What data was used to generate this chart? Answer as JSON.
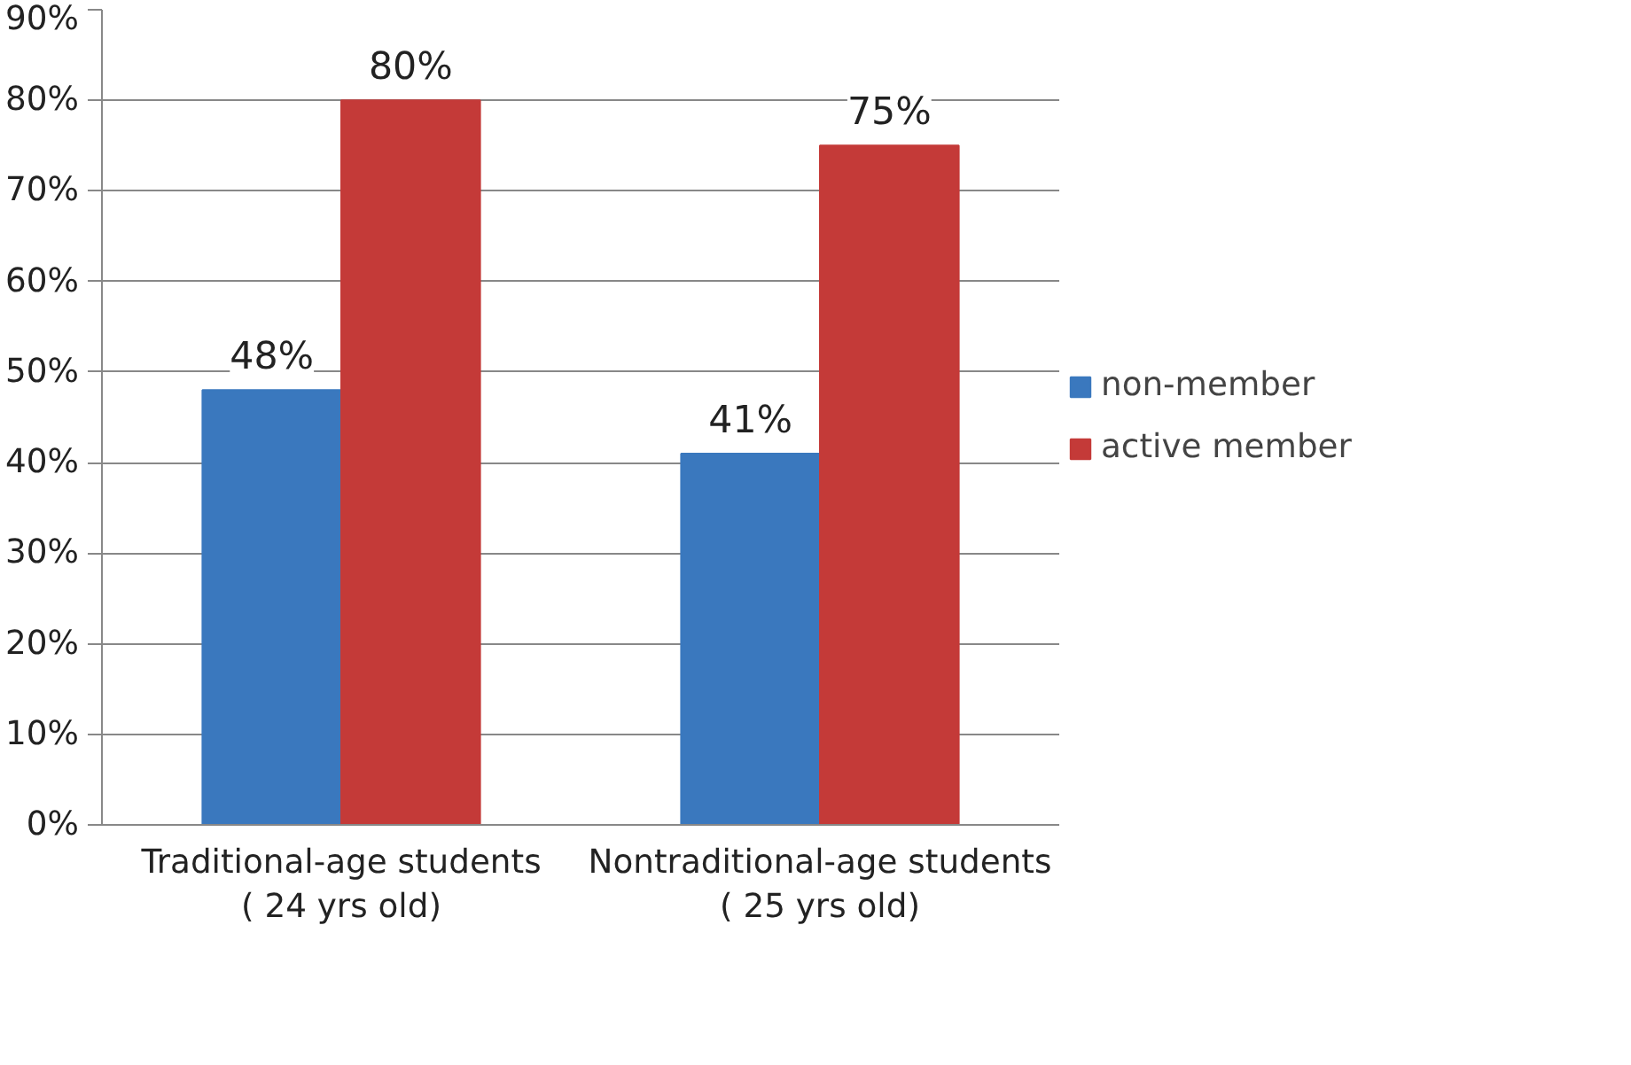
{
  "chart_data": {
    "type": "bar",
    "categories": [
      "Traditional-age students\n( 24 yrs old)",
      "Nontraditional-age students\n( 25 yrs old)"
    ],
    "series": [
      {
        "name": "non-member",
        "color": "#3a78be",
        "values": [
          48,
          41
        ],
        "value_labels": [
          "48%",
          "41%"
        ]
      },
      {
        "name": "active member",
        "color": "#c43a38",
        "values": [
          80,
          75
        ],
        "value_labels": [
          "80%",
          "75%"
        ]
      }
    ],
    "ylim": [
      0,
      90
    ],
    "yticks": [
      {
        "value": 0,
        "label": "0%"
      },
      {
        "value": 10,
        "label": "10%"
      },
      {
        "value": 20,
        "label": "20%"
      },
      {
        "value": 30,
        "label": "30%"
      },
      {
        "value": 40,
        "label": "40%"
      },
      {
        "value": 50,
        "label": "50%"
      },
      {
        "value": 60,
        "label": "60%"
      },
      {
        "value": 70,
        "label": "70%"
      },
      {
        "value": 80,
        "label": "80%"
      },
      {
        "value": 90,
        "label": "90%"
      }
    ],
    "grid": "y",
    "legend": "right"
  }
}
